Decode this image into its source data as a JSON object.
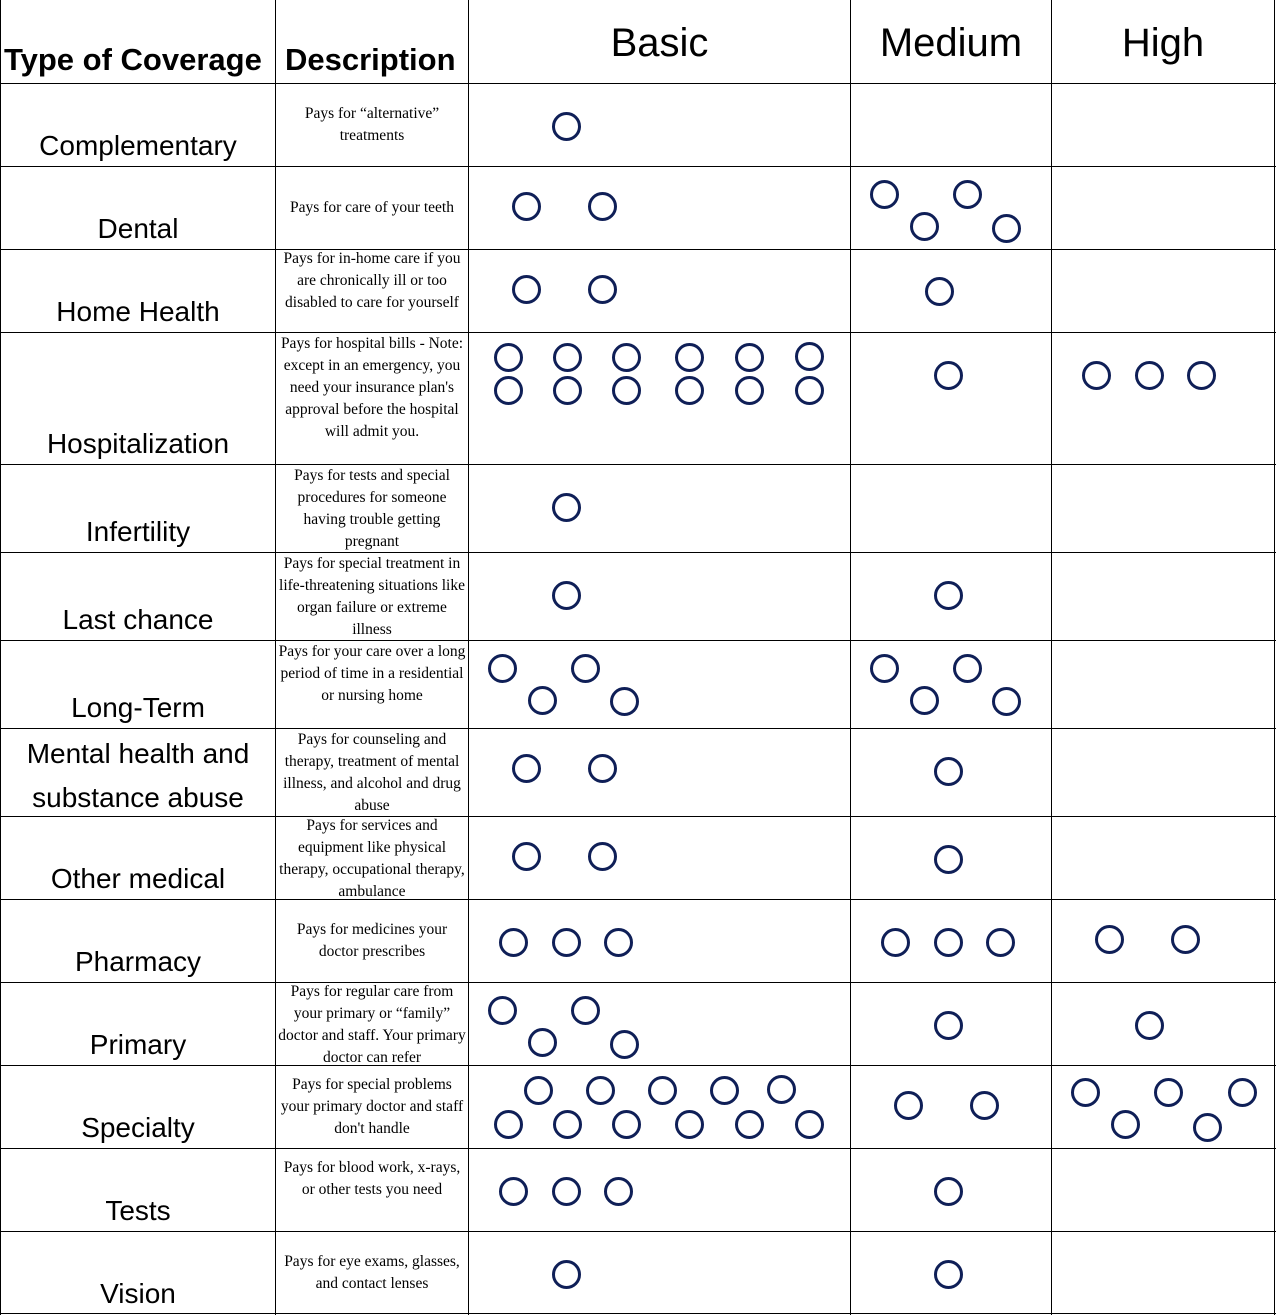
{
  "header": {
    "type_of_coverage": "Type of Coverage",
    "description": "Description",
    "basic": "Basic",
    "medium": "Medium",
    "high": "High"
  },
  "colors": {
    "circle": "#0f1f57",
    "grid": "#000000"
  },
  "icon": "circle-outline-icon",
  "rows": [
    {
      "type": "Complementary",
      "description": "Pays for “alternative” treatments",
      "counts": {
        "basic": 1,
        "medium": 0,
        "high": 0
      }
    },
    {
      "type": "Dental",
      "description": "Pays for care of your teeth",
      "counts": {
        "basic": 2,
        "medium": 4,
        "high": 0
      }
    },
    {
      "type": "Home Health",
      "description": "Pays for in-home care if you are chronically ill or too disabled to care for yourself",
      "counts": {
        "basic": 2,
        "medium": 1,
        "high": 0
      }
    },
    {
      "type": "Hospitalization",
      "description": "Pays for hospital bills - Note: except in an emergency, you need your insurance plan's approval before the hospital will admit you.",
      "counts": {
        "basic": 12,
        "medium": 1,
        "high": 3
      }
    },
    {
      "type": "Infertility",
      "description": "Pays for tests and special procedures for someone having trouble getting pregnant",
      "counts": {
        "basic": 1,
        "medium": 0,
        "high": 0
      }
    },
    {
      "type": "Last chance",
      "description": "Pays for special treatment in life-threatening situations like organ failure or extreme illness",
      "counts": {
        "basic": 1,
        "medium": 1,
        "high": 0
      }
    },
    {
      "type": "Long-Term",
      "description": "Pays for your care over a long period of time in a residential or nursing home",
      "counts": {
        "basic": 4,
        "medium": 4,
        "high": 0
      }
    },
    {
      "type": "Mental health and substance abuse",
      "description": "Pays for counseling and therapy, treatment of mental illness, and alcohol and drug abuse",
      "counts": {
        "basic": 2,
        "medium": 1,
        "high": 0
      }
    },
    {
      "type": "Other medical",
      "description": "Pays for services and equipment like physical therapy, occupational therapy, ambulance",
      "counts": {
        "basic": 2,
        "medium": 1,
        "high": 0
      }
    },
    {
      "type": "Pharmacy",
      "description": "Pays for medicines your doctor prescribes",
      "counts": {
        "basic": 3,
        "medium": 3,
        "high": 2
      }
    },
    {
      "type": "Primary",
      "description": "Pays for regular care from your primary or “family” doctor and staff. Your primary doctor can refer",
      "counts": {
        "basic": 4,
        "medium": 1,
        "high": 1
      }
    },
    {
      "type": "Specialty",
      "description": "Pays for special problems your primary doctor and staff don't handle",
      "counts": {
        "basic": 11,
        "medium": 2,
        "high": 5
      }
    },
    {
      "type": "Tests",
      "description": "Pays for blood work, x-rays, or other tests you need",
      "counts": {
        "basic": 3,
        "medium": 1,
        "high": 0
      }
    },
    {
      "type": "Vision",
      "description": "Pays for eye exams, glasses, and contact lenses",
      "counts": {
        "basic": 1,
        "medium": 1,
        "high": 0
      }
    }
  ]
}
